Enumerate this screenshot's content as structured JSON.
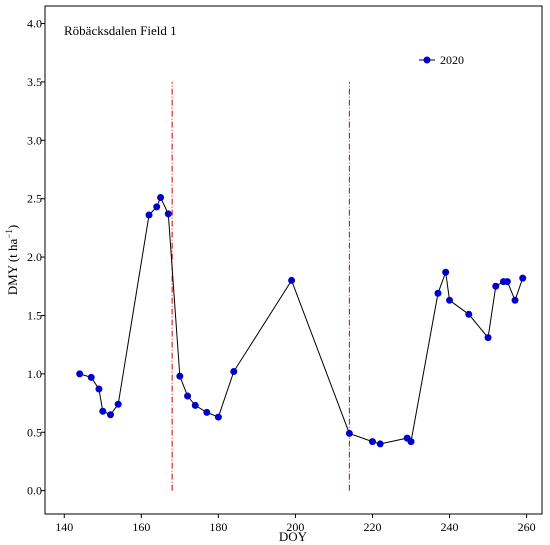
{
  "chart_data": {
    "type": "line",
    "annotation": "Röbäcksdalen Field 1",
    "xlabel": "DOY",
    "ylabel_main": "DMY (t ha",
    "ylabel_sup": "−1",
    "ylabel_close": ")",
    "xlim": [
      135,
      264
    ],
    "ylim": [
      -0.2,
      4.15
    ],
    "x_ticks": [
      140,
      160,
      180,
      200,
      220,
      240,
      260
    ],
    "y_ticks": [
      0.0,
      0.5,
      1.0,
      1.5,
      2.0,
      2.5,
      3.0,
      3.5,
      4.0
    ],
    "y_tick_labels": [
      "0.0",
      "0.5",
      "1.0",
      "1.5",
      "2.0",
      "2.5",
      "3.0",
      "3.5",
      "4.0"
    ],
    "legend_placement": "top-right",
    "colors": {
      "series": "#0000cc",
      "line": "#000000",
      "vline": "#cc0000"
    },
    "vertical_lines": [
      {
        "x": 168,
        "y_range": [
          0.0,
          3.5
        ]
      },
      {
        "x": 214,
        "y_range": [
          0.0,
          3.5
        ]
      }
    ],
    "series": [
      {
        "name": "2020",
        "x": [
          144,
          147,
          149,
          150,
          152,
          154,
          162,
          164,
          165,
          167,
          170,
          172,
          174,
          177,
          180,
          184,
          199,
          214,
          220,
          222,
          229,
          230,
          237,
          239,
          240,
          245,
          250,
          252,
          254,
          255,
          257,
          259
        ],
        "y": [
          1.0,
          0.97,
          0.87,
          0.68,
          0.65,
          0.74,
          2.36,
          2.43,
          2.51,
          2.37,
          0.98,
          0.81,
          0.73,
          0.67,
          0.63,
          1.02,
          1.8,
          0.49,
          0.42,
          0.4,
          0.45,
          0.42,
          1.69,
          1.87,
          1.63,
          1.51,
          1.31,
          1.75,
          1.79,
          1.79,
          1.63,
          1.82
        ]
      }
    ]
  }
}
